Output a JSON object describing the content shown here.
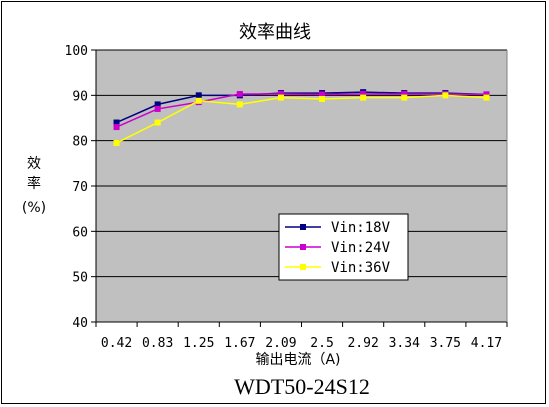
{
  "chart_data": {
    "type": "line",
    "title": "效率曲线",
    "xlabel": "输出电流（A)",
    "ylabel_lines": [
      "效",
      "率",
      "(%)"
    ],
    "model_label": "WDT50-24S12",
    "categories": [
      "0.42",
      "0.83",
      "1.25",
      "1.67",
      "2.09",
      "2.5",
      "2.92",
      "3.34",
      "3.75",
      "4.17"
    ],
    "ylim": [
      40,
      100
    ],
    "yticks": [
      "40",
      "50",
      "60",
      "70",
      "80",
      "90",
      "100"
    ],
    "grid": "horizontal",
    "legend_position": "lower-center",
    "series": [
      {
        "name": "Vin:18V",
        "color": "#000080",
        "marker": "square",
        "values": [
          84,
          88,
          90,
          90,
          90.5,
          90.5,
          90.7,
          90.5,
          90.5,
          90.2
        ]
      },
      {
        "name": "Vin:24V",
        "color": "#cc00cc",
        "marker": "square",
        "values": [
          83,
          87,
          88.5,
          90.3,
          90.3,
          90.2,
          90.3,
          90.3,
          90.3,
          90.2
        ]
      },
      {
        "name": "Vin:36V",
        "color": "#ffff00",
        "marker": "square",
        "values": [
          79.5,
          84,
          88.8,
          88,
          89.5,
          89.2,
          89.5,
          89.5,
          90,
          89.5
        ]
      }
    ]
  }
}
